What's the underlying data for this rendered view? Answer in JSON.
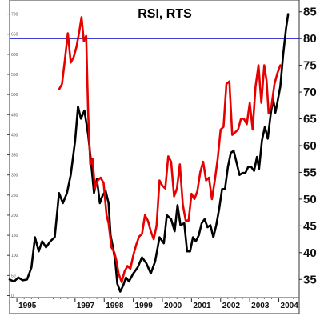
{
  "chart_data": {
    "type": "line",
    "title": "RSI, RTS",
    "xlim": [
      1994.75,
      2004.7
    ],
    "x_ticks": [
      {
        "value": 1995.0,
        "label": "1995"
      },
      {
        "value": 1997.0,
        "label": "1997"
      },
      {
        "value": 1998.0,
        "label": "1998"
      },
      {
        "value": 1999.0,
        "label": "1999"
      },
      {
        "value": 2000.0,
        "label": "2000"
      },
      {
        "value": 2001.0,
        "label": "2001"
      },
      {
        "value": 2002.0,
        "label": "2002"
      },
      {
        "value": 2003.0,
        "label": "2003"
      },
      {
        "value": 2004.0,
        "label": "2004"
      }
    ],
    "left_axis": {
      "label": "",
      "ylim": [
        -5,
        735
      ],
      "ticks": [
        0,
        50,
        100,
        150,
        200,
        250,
        300,
        350,
        400,
        450,
        500,
        550,
        600,
        650,
        700
      ]
    },
    "right_axis": {
      "label": "",
      "ylim": [
        31.6,
        87.2
      ],
      "ticks": [
        35,
        40,
        45,
        50,
        55,
        60,
        65,
        70,
        75,
        80,
        85
      ]
    },
    "reference_line": {
      "axis": "right",
      "value": 80,
      "color": "#2222cc"
    },
    "series": [
      {
        "axis": "left",
        "color": "#000000",
        "points": [
          [
            1994.75,
            40
          ],
          [
            1994.9,
            35
          ],
          [
            1995.05,
            45
          ],
          [
            1995.2,
            38
          ],
          [
            1995.35,
            40
          ],
          [
            1995.5,
            70
          ],
          [
            1995.62,
            145
          ],
          [
            1995.75,
            110
          ],
          [
            1995.87,
            135
          ],
          [
            1996.0,
            120
          ],
          [
            1996.15,
            135
          ],
          [
            1996.3,
            145
          ],
          [
            1996.45,
            255
          ],
          [
            1996.58,
            230
          ],
          [
            1996.72,
            255
          ],
          [
            1996.85,
            300
          ],
          [
            1997.0,
            385
          ],
          [
            1997.1,
            470
          ],
          [
            1997.2,
            440
          ],
          [
            1997.32,
            460
          ],
          [
            1997.45,
            400
          ],
          [
            1997.55,
            330
          ],
          [
            1997.65,
            255
          ],
          [
            1997.75,
            290
          ],
          [
            1997.85,
            230
          ],
          [
            1997.95,
            250
          ],
          [
            1998.05,
            260
          ],
          [
            1998.15,
            230
          ],
          [
            1998.22,
            150
          ],
          [
            1998.3,
            120
          ],
          [
            1998.38,
            85
          ],
          [
            1998.45,
            30
          ],
          [
            1998.55,
            10
          ],
          [
            1998.65,
            25
          ],
          [
            1998.75,
            45
          ],
          [
            1998.85,
            35
          ],
          [
            1999.0,
            55
          ],
          [
            1999.15,
            70
          ],
          [
            1999.3,
            95
          ],
          [
            1999.45,
            80
          ],
          [
            1999.6,
            55
          ],
          [
            1999.75,
            85
          ],
          [
            1999.9,
            145
          ],
          [
            2000.05,
            130
          ],
          [
            2000.15,
            200
          ],
          [
            2000.3,
            190
          ],
          [
            2000.42,
            160
          ],
          [
            2000.52,
            225
          ],
          [
            2000.62,
            175
          ],
          [
            2000.75,
            180
          ],
          [
            2000.85,
            110
          ],
          [
            2000.95,
            110
          ],
          [
            2001.05,
            145
          ],
          [
            2001.15,
            135
          ],
          [
            2001.25,
            150
          ],
          [
            2001.35,
            180
          ],
          [
            2001.45,
            190
          ],
          [
            2001.55,
            170
          ],
          [
            2001.65,
            175
          ],
          [
            2001.75,
            145
          ],
          [
            2001.85,
            175
          ],
          [
            2001.95,
            215
          ],
          [
            2002.05,
            265
          ],
          [
            2002.15,
            265
          ],
          [
            2002.25,
            320
          ],
          [
            2002.35,
            355
          ],
          [
            2002.45,
            360
          ],
          [
            2002.55,
            330
          ],
          [
            2002.65,
            300
          ],
          [
            2002.75,
            305
          ],
          [
            2002.85,
            305
          ],
          [
            2002.95,
            320
          ],
          [
            2003.05,
            320
          ],
          [
            2003.15,
            310
          ],
          [
            2003.25,
            345
          ],
          [
            2003.32,
            315
          ],
          [
            2003.42,
            385
          ],
          [
            2003.52,
            420
          ],
          [
            2003.62,
            390
          ],
          [
            2003.72,
            450
          ],
          [
            2003.8,
            490
          ],
          [
            2003.88,
            455
          ],
          [
            2003.95,
            480
          ],
          [
            2004.05,
            520
          ],
          [
            2004.15,
            600
          ],
          [
            2004.25,
            665
          ],
          [
            2004.32,
            700
          ]
        ]
      },
      {
        "axis": "right",
        "color": "#e60000",
        "points": [
          [
            1996.45,
            70.5
          ],
          [
            1996.55,
            71.5
          ],
          [
            1996.65,
            76
          ],
          [
            1996.75,
            81
          ],
          [
            1996.85,
            75.5
          ],
          [
            1996.95,
            76.5
          ],
          [
            1997.05,
            78.5
          ],
          [
            1997.15,
            81.5
          ],
          [
            1997.22,
            84
          ],
          [
            1997.3,
            79.5
          ],
          [
            1997.38,
            80.5
          ],
          [
            1997.45,
            66
          ],
          [
            1997.52,
            56.5
          ],
          [
            1997.6,
            57.5
          ],
          [
            1997.68,
            52
          ],
          [
            1997.78,
            53.5
          ],
          [
            1997.88,
            54
          ],
          [
            1997.98,
            53
          ],
          [
            1998.08,
            47
          ],
          [
            1998.15,
            45.5
          ],
          [
            1998.25,
            41
          ],
          [
            1998.35,
            40
          ],
          [
            1998.42,
            38.5
          ],
          [
            1998.5,
            36
          ],
          [
            1998.6,
            34.5
          ],
          [
            1998.7,
            36.5
          ],
          [
            1998.8,
            37.5
          ],
          [
            1998.9,
            37
          ],
          [
            1999.0,
            39.5
          ],
          [
            1999.1,
            41.5
          ],
          [
            1999.2,
            43
          ],
          [
            1999.3,
            43.5
          ],
          [
            1999.4,
            47
          ],
          [
            1999.5,
            46
          ],
          [
            1999.6,
            44
          ],
          [
            1999.7,
            42.5
          ],
          [
            1999.8,
            45
          ],
          [
            1999.9,
            53.5
          ],
          [
            2000.0,
            52.5
          ],
          [
            2000.1,
            52
          ],
          [
            2000.2,
            58
          ],
          [
            2000.3,
            57
          ],
          [
            2000.4,
            50.5
          ],
          [
            2000.5,
            52
          ],
          [
            2000.6,
            56.5
          ],
          [
            2000.7,
            49
          ],
          [
            2000.8,
            46
          ],
          [
            2000.9,
            46
          ],
          [
            2001.0,
            51
          ],
          [
            2001.1,
            50
          ],
          [
            2001.2,
            51.5
          ],
          [
            2001.3,
            55
          ],
          [
            2001.4,
            57
          ],
          [
            2001.5,
            53.5
          ],
          [
            2001.6,
            54
          ],
          [
            2001.7,
            50
          ],
          [
            2001.8,
            53.5
          ],
          [
            2001.9,
            57.5
          ],
          [
            2002.0,
            63
          ],
          [
            2002.1,
            63.5
          ],
          [
            2002.2,
            71.5
          ],
          [
            2002.3,
            72
          ],
          [
            2002.4,
            62
          ],
          [
            2002.5,
            62.5
          ],
          [
            2002.6,
            63
          ],
          [
            2002.7,
            65
          ],
          [
            2002.8,
            65
          ],
          [
            2002.9,
            64
          ],
          [
            2003.0,
            68
          ],
          [
            2003.1,
            63
          ],
          [
            2003.2,
            71
          ],
          [
            2003.3,
            75
          ],
          [
            2003.4,
            68
          ],
          [
            2003.5,
            75
          ],
          [
            2003.58,
            72
          ],
          [
            2003.65,
            66
          ],
          [
            2003.75,
            67.5
          ],
          [
            2003.85,
            71.5
          ],
          [
            2003.95,
            73.5
          ],
          [
            2004.05,
            75
          ]
        ]
      }
    ]
  }
}
